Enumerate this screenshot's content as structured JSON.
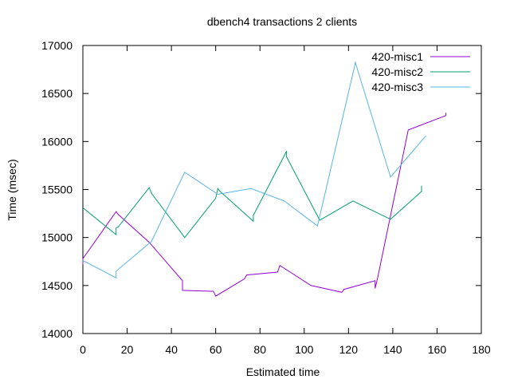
{
  "chart_data": {
    "type": "line",
    "title": "dbench4 transactions 2 clients",
    "xlabel": "Estimated time",
    "ylabel": "Time (msec)",
    "xlim": [
      0,
      180
    ],
    "ylim": [
      14000,
      17000
    ],
    "xticks": [
      0,
      20,
      40,
      60,
      80,
      100,
      120,
      140,
      160,
      180
    ],
    "yticks": [
      14000,
      14500,
      15000,
      15500,
      16000,
      16500,
      17000
    ],
    "grid": false,
    "legend_position": "top-right",
    "series": [
      {
        "name": "420-misc1",
        "color": "#9400d3",
        "points": [
          [
            0,
            14720
          ],
          [
            0,
            14780
          ],
          [
            15,
            15270
          ],
          [
            16,
            15240
          ],
          [
            30,
            14950
          ],
          [
            45,
            14550
          ],
          [
            45,
            14450
          ],
          [
            59,
            14440
          ],
          [
            60,
            14390
          ],
          [
            73,
            14570
          ],
          [
            74,
            14610
          ],
          [
            88,
            14640
          ],
          [
            89,
            14710
          ],
          [
            103,
            14500
          ],
          [
            117,
            14430
          ],
          [
            118,
            14460
          ],
          [
            132,
            14550
          ],
          [
            132,
            14470
          ],
          [
            133,
            14560
          ],
          [
            147,
            16120
          ],
          [
            164,
            16270
          ],
          [
            164,
            16300
          ]
        ]
      },
      {
        "name": "420-misc2",
        "color": "#009e73",
        "points": [
          [
            0,
            15310
          ],
          [
            15,
            15030
          ],
          [
            15,
            15100
          ],
          [
            16,
            15110
          ],
          [
            30,
            15520
          ],
          [
            31,
            15460
          ],
          [
            46,
            15000
          ],
          [
            60,
            15410
          ],
          [
            61,
            15510
          ],
          [
            62,
            15480
          ],
          [
            77,
            15170
          ],
          [
            77,
            15230
          ],
          [
            92,
            15900
          ],
          [
            92,
            15840
          ],
          [
            107,
            15180
          ],
          [
            122,
            15380
          ],
          [
            139,
            15190
          ],
          [
            153,
            15480
          ],
          [
            153,
            15540
          ]
        ]
      },
      {
        "name": "420-misc3",
        "color": "#56b4e9",
        "points": [
          [
            0,
            14760
          ],
          [
            15,
            14580
          ],
          [
            15,
            14650
          ],
          [
            31,
            14960
          ],
          [
            46,
            15680
          ],
          [
            61,
            15450
          ],
          [
            76,
            15510
          ],
          [
            91,
            15380
          ],
          [
            106,
            15120
          ],
          [
            123,
            16810
          ],
          [
            123,
            16830
          ],
          [
            139,
            15630
          ],
          [
            155,
            16060
          ]
        ]
      }
    ]
  }
}
